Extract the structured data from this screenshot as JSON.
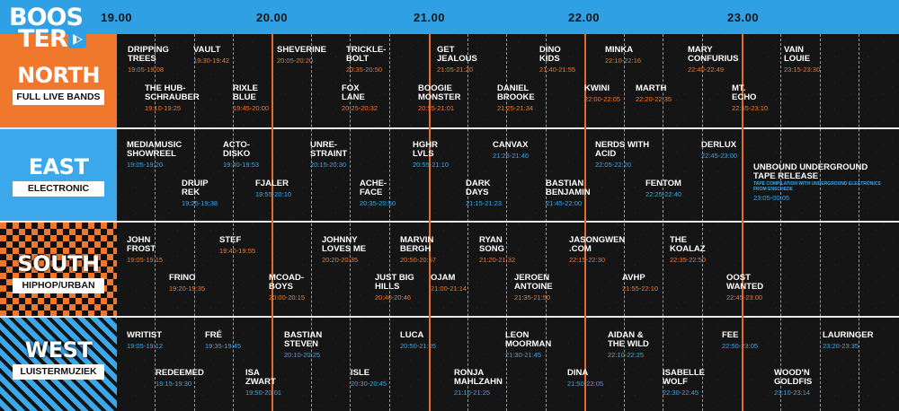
{
  "logo": {
    "line1": "BOOS",
    "line2": "TER"
  },
  "colors": {
    "north": "#f0782c",
    "east": "#3aa8ea",
    "south": "#f0782c",
    "west": "#3aa8ea",
    "topbar": "#2fa0e3"
  },
  "hours": [
    "19.00",
    "20.00",
    "21.00",
    "22.00",
    "23.00"
  ],
  "stages": [
    {
      "name": "NORTH",
      "sub": "FULL LIVE BANDS"
    },
    {
      "name": "EAST",
      "sub": "ELECTRONIC"
    },
    {
      "name": "SOUTH",
      "sub": "HIPHOP/URBAN"
    },
    {
      "name": "WEST",
      "sub": "LUISTERMUZIEK"
    }
  ],
  "north": [
    {
      "name": "DRIPPING\nTREES",
      "time": "19:05-19:08"
    },
    {
      "name": "VAULT",
      "time": "19:30-19:42"
    },
    {
      "name": "SHEVERINE",
      "time": "20:05-20:20"
    },
    {
      "name": "TRICKLE-\nBOLT",
      "time": "20:35-20:50"
    },
    {
      "name": "GET\nJEALOUS",
      "time": "21:05-21:20"
    },
    {
      "name": "DINO\nKIDS",
      "time": "21:40-21:55"
    },
    {
      "name": "MINKA",
      "time": "22:10-22:16"
    },
    {
      "name": "MARY\nCONFURIUS",
      "time": "22:40-22:49"
    },
    {
      "name": "VAIN\nLOUIE",
      "time": "23:15-23:30"
    },
    {
      "name": "THE HUB-\nSCHRAUBER",
      "time": "19:10-19:25"
    },
    {
      "name": "RIXLE\nBLUE",
      "time": "19:45-20:00"
    },
    {
      "name": "FOX\nLANE",
      "time": "20:25-20:32"
    },
    {
      "name": "BOOGIE\nMONSTER",
      "time": "20:55-21:01"
    },
    {
      "name": "DANIEL\nBROOKE",
      "time": "21:25-21:34"
    },
    {
      "name": "KWINI",
      "time": "22:00-22:05"
    },
    {
      "name": "MARTH",
      "time": "22:20-22:35"
    },
    {
      "name": "MT.\nECHO",
      "time": "22:55-23:10"
    }
  ],
  "east": [
    {
      "name": "MEDIAMUSIC\nSHOWREEL",
      "time": "19:05-19:20"
    },
    {
      "name": "ACTO-\nDISKO",
      "time": "19:40-19:53"
    },
    {
      "name": "UNRE-\nSTRAINT",
      "time": "20:15-20:30"
    },
    {
      "name": "HGHR\nLVLS",
      "time": "20:55-21:10"
    },
    {
      "name": "CANVAX",
      "time": "21:25-21:40"
    },
    {
      "name": "NERDS WITH\nACID",
      "time": "22:05-22:20"
    },
    {
      "name": "DERLUX",
      "time": "22:45-23:00"
    },
    {
      "name": "UNBOUND UNDERGROUND\nTAPE RELEASE",
      "time": "23:05-00:05",
      "sub": "TAPE COMPILATION WITH UNDERGROUND ELECTRONICS\nFROM ENSCHEDE"
    },
    {
      "name": "DRUIP\nREK",
      "time": "19:25-19:38"
    },
    {
      "name": "FJALER",
      "time": "19:55-20:10"
    },
    {
      "name": "ACHE-\nFACE",
      "time": "20:35-20:50"
    },
    {
      "name": "DARK\nDAYS",
      "time": "21:15-21:23"
    },
    {
      "name": "BASTIAN\nBENJAMIN",
      "time": "21:45-22:00"
    },
    {
      "name": "FENTOM",
      "time": "22:25-22:40"
    }
  ],
  "south": [
    {
      "name": "JOHN\nFROST",
      "time": "19:05-19:15"
    },
    {
      "name": "STEF",
      "time": "19:40-19:55"
    },
    {
      "name": "JOHNNY\nLOVES ME",
      "time": "20:20-20:35"
    },
    {
      "name": "MARVIN\nBERGH",
      "time": "20:50-20:57"
    },
    {
      "name": "RYAN\nSONG",
      "time": "21:20-21:32"
    },
    {
      "name": "JASONGWEN\n.COM",
      "time": "22:15-22:30"
    },
    {
      "name": "THE\nKOALAZ",
      "time": "22:35-22:50"
    },
    {
      "name": "FRINO",
      "time": "19:20-19:35"
    },
    {
      "name": "MCOAD-\nBOYS",
      "time": "20:00-20:15"
    },
    {
      "name": "JUST BIG\nHILLS",
      "time": "20:40-20:46"
    },
    {
      "name": "OJAM",
      "time": "21:00-21:14"
    },
    {
      "name": "JEROEN\nANTOINE",
      "time": "21:35-21:50"
    },
    {
      "name": "AVHP",
      "time": "21:55-22:10"
    },
    {
      "name": "OOST\nWANTED",
      "time": "22:45-23:00"
    }
  ],
  "west": [
    {
      "name": "WRITIST",
      "time": "19:05-19:12"
    },
    {
      "name": "FRÉ",
      "time": "19:35-19:45"
    },
    {
      "name": "BASTIAN\nSTEVEN",
      "time": "20:10-20:25"
    },
    {
      "name": "LUCA",
      "time": "20:50-21:05"
    },
    {
      "name": "LEON\nMOORMAN",
      "time": "21:30-21:45"
    },
    {
      "name": "AIDAN &\nTHE WILD",
      "time": "22:10-22:25"
    },
    {
      "name": "FEE",
      "time": "22:50-23:05"
    },
    {
      "name": "LAURINGER",
      "time": "23:20-23:35"
    },
    {
      "name": "REDEEMED",
      "time": "19:15-19:30"
    },
    {
      "name": "ISA\nZWART",
      "time": "19:50-20:01"
    },
    {
      "name": "ISLE",
      "time": "20:30-20:45"
    },
    {
      "name": "RONJA\nMAHLZAHN",
      "time": "21:10-21:25"
    },
    {
      "name": "DINA",
      "time": "21:50-22:05"
    },
    {
      "name": "ISABELLE\nWOLF",
      "time": "22:30-22:45"
    },
    {
      "name": "WOOD'N\nGOLDFIS",
      "time": "23:10-23:14"
    }
  ]
}
